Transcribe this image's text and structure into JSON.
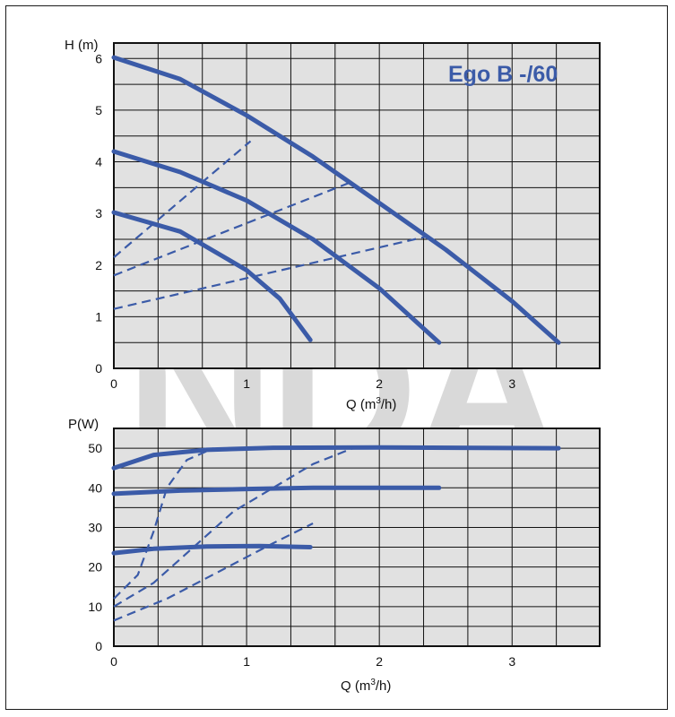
{
  "watermark_text": "NDA",
  "colors": {
    "curve": "#3b5ba8",
    "plot_bg": "#e1e1e1",
    "grid": "#111111",
    "watermark": "#d9d9d9"
  },
  "chart_data": [
    {
      "type": "line",
      "title": "Ego B -/60",
      "xlabel_prefix": "Q (m",
      "xlabel_sup": "3",
      "xlabel_suffix": "/h)",
      "ylabel": "H (m)",
      "xlim": [
        0,
        3.66
      ],
      "ylim": [
        0,
        6.3
      ],
      "grid": true,
      "x_ticks": [
        "0",
        "1",
        "2",
        "3"
      ],
      "y_ticks": [
        "0",
        "1",
        "2",
        "3",
        "4",
        "5",
        "6"
      ],
      "series": [
        {
          "style": "solid",
          "points": [
            [
              0,
              6.02
            ],
            [
              0.5,
              5.6
            ],
            [
              1.0,
              4.9
            ],
            [
              1.5,
              4.1
            ],
            [
              2.0,
              3.2
            ],
            [
              2.5,
              2.3
            ],
            [
              3.0,
              1.3
            ],
            [
              3.35,
              0.5
            ]
          ]
        },
        {
          "style": "solid",
          "points": [
            [
              0,
              4.2
            ],
            [
              0.5,
              3.8
            ],
            [
              1.0,
              3.25
            ],
            [
              1.5,
              2.5
            ],
            [
              2.0,
              1.55
            ],
            [
              2.45,
              0.5
            ]
          ]
        },
        {
          "style": "solid",
          "points": [
            [
              0,
              3.02
            ],
            [
              0.5,
              2.65
            ],
            [
              1.0,
              1.9
            ],
            [
              1.25,
              1.35
            ],
            [
              1.48,
              0.55
            ]
          ]
        },
        {
          "style": "dashed",
          "points": [
            [
              0,
              2.15
            ],
            [
              1.03,
              4.4
            ]
          ]
        },
        {
          "style": "dashed",
          "points": [
            [
              0,
              1.8
            ],
            [
              1.78,
              3.6
            ]
          ]
        },
        {
          "style": "dashed",
          "points": [
            [
              0,
              1.15
            ],
            [
              2.35,
              2.55
            ]
          ]
        }
      ]
    },
    {
      "type": "line",
      "xlabel_prefix": "Q (m",
      "xlabel_sup": "3",
      "xlabel_suffix": "/h)",
      "ylabel": "P(W)",
      "xlim": [
        0,
        3.66
      ],
      "ylim": [
        0,
        55
      ],
      "grid": true,
      "x_ticks": [
        "0",
        "1",
        "2",
        "3"
      ],
      "y_ticks": [
        "0",
        "10",
        "20",
        "30",
        "40",
        "50"
      ],
      "series": [
        {
          "style": "solid",
          "points": [
            [
              0,
              45
            ],
            [
              0.3,
              48.3
            ],
            [
              0.7,
              49.6
            ],
            [
              1.2,
              50.1
            ],
            [
              2.0,
              50.2
            ],
            [
              3.35,
              50
            ]
          ]
        },
        {
          "style": "solid",
          "points": [
            [
              0,
              38.5
            ],
            [
              0.5,
              39.3
            ],
            [
              1.0,
              39.7
            ],
            [
              1.5,
              40
            ],
            [
              2.45,
              40
            ]
          ]
        },
        {
          "style": "solid",
          "points": [
            [
              0,
              23.5
            ],
            [
              0.3,
              24.6
            ],
            [
              0.7,
              25.2
            ],
            [
              1.1,
              25.3
            ],
            [
              1.48,
              25
            ]
          ]
        },
        {
          "style": "dashed",
          "points": [
            [
              0,
              12
            ],
            [
              0.18,
              18
            ],
            [
              0.3,
              29
            ],
            [
              0.4,
              40
            ],
            [
              0.55,
              47
            ],
            [
              0.75,
              50
            ]
          ]
        },
        {
          "style": "dashed",
          "points": [
            [
              0,
              10
            ],
            [
              0.3,
              16
            ],
            [
              0.6,
              25
            ],
            [
              0.9,
              34
            ],
            [
              1.2,
              40
            ],
            [
              1.5,
              46
            ],
            [
              1.8,
              50
            ]
          ]
        },
        {
          "style": "dashed",
          "points": [
            [
              0,
              6.5
            ],
            [
              0.4,
              12
            ],
            [
              0.8,
              19
            ],
            [
              1.2,
              26
            ],
            [
              1.5,
              31
            ]
          ]
        }
      ]
    }
  ]
}
